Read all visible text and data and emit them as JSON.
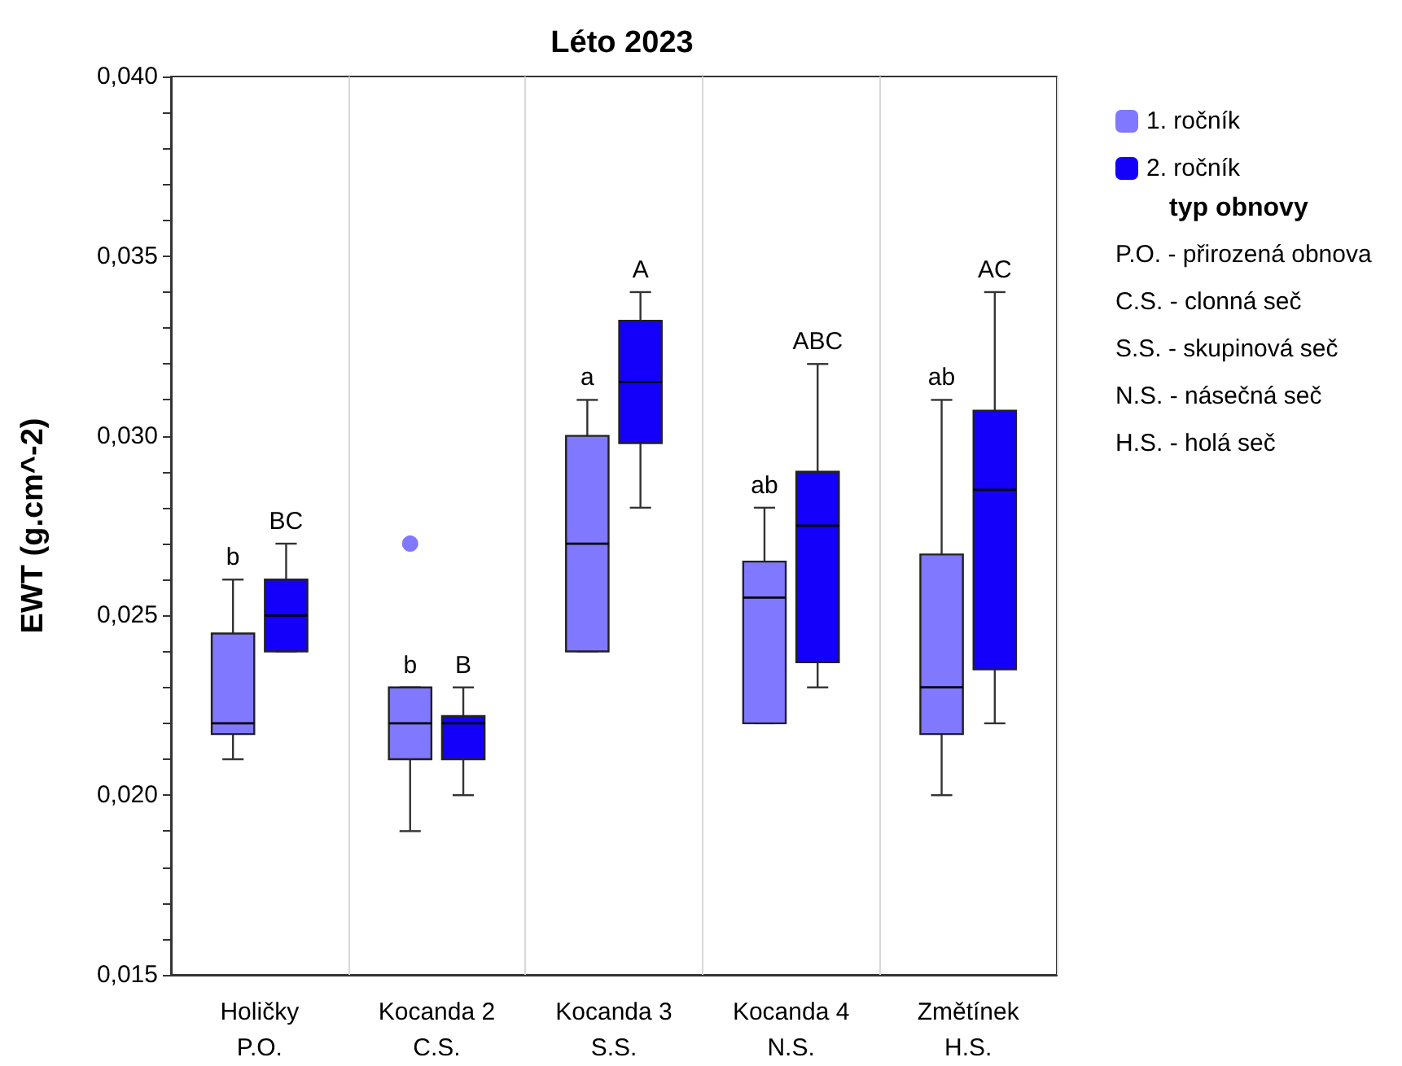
{
  "chart_data": {
    "type": "box",
    "title": "Léto 2023",
    "ylabel": "EWT (g.cm^-2)",
    "categories": [
      "Holičky\nP.O.",
      "Kocanda 2\nC.S.",
      "Kocanda 3\nS.S.",
      "Kocanda 4\nN.S.",
      "Změtínek\nH.S."
    ],
    "series": [
      {
        "name": "1. ročník",
        "color": "#8078ff",
        "value_labels": [
          "b",
          "b",
          "a",
          "ab",
          "ab"
        ],
        "boxes": [
          {
            "low": 0.021,
            "q1": 0.0217,
            "median": 0.022,
            "q3": 0.0245,
            "high": 0.026
          },
          {
            "low": 0.019,
            "q1": 0.021,
            "median": 0.022,
            "q3": 0.023,
            "high": 0.023,
            "outliers": [
              0.027
            ]
          },
          {
            "low": 0.024,
            "q1": 0.024,
            "median": 0.027,
            "q3": 0.03,
            "high": 0.031
          },
          {
            "low": 0.022,
            "q1": 0.022,
            "median": 0.0255,
            "q3": 0.0265,
            "high": 0.028
          },
          {
            "low": 0.02,
            "q1": 0.0217,
            "median": 0.023,
            "q3": 0.0267,
            "high": 0.031
          }
        ]
      },
      {
        "name": "2. ročník",
        "color": "#1400fa",
        "value_labels": [
          "BC",
          "B",
          "A",
          "ABC",
          "AC"
        ],
        "boxes": [
          {
            "low": 0.024,
            "q1": 0.024,
            "median": 0.025,
            "q3": 0.026,
            "high": 0.027
          },
          {
            "low": 0.02,
            "q1": 0.021,
            "median": 0.022,
            "q3": 0.0222,
            "high": 0.023
          },
          {
            "low": 0.028,
            "q1": 0.0298,
            "median": 0.0315,
            "q3": 0.0332,
            "high": 0.034
          },
          {
            "low": 0.023,
            "q1": 0.0237,
            "median": 0.0275,
            "q3": 0.029,
            "high": 0.032
          },
          {
            "low": 0.022,
            "q1": 0.0235,
            "median": 0.0285,
            "q3": 0.0307,
            "high": 0.034
          }
        ]
      }
    ],
    "ylim": [
      0.015,
      0.04
    ],
    "yticks": [
      {
        "value": 0.015,
        "label": "0,015"
      },
      {
        "value": 0.016,
        "label": null
      },
      {
        "value": 0.017,
        "label": null
      },
      {
        "value": 0.018,
        "label": null
      },
      {
        "value": 0.019,
        "label": null
      },
      {
        "value": 0.02,
        "label": "0,020"
      },
      {
        "value": 0.021,
        "label": null
      },
      {
        "value": 0.022,
        "label": null
      },
      {
        "value": 0.023,
        "label": null
      },
      {
        "value": 0.024,
        "label": null
      },
      {
        "value": 0.025,
        "label": "0,025"
      },
      {
        "value": 0.026,
        "label": null
      },
      {
        "value": 0.027,
        "label": null
      },
      {
        "value": 0.028,
        "label": null
      },
      {
        "value": 0.029,
        "label": null
      },
      {
        "value": 0.03,
        "label": "0,030"
      },
      {
        "value": 0.031,
        "label": null
      },
      {
        "value": 0.032,
        "label": null
      },
      {
        "value": 0.033,
        "label": null
      },
      {
        "value": 0.034,
        "label": null
      },
      {
        "value": 0.035,
        "label": "0,035"
      },
      {
        "value": 0.036,
        "label": null
      },
      {
        "value": 0.037,
        "label": null
      },
      {
        "value": 0.038,
        "label": null
      },
      {
        "value": 0.039,
        "label": null
      },
      {
        "value": 0.04,
        "label": "0,040"
      }
    ],
    "grid": "x",
    "legend": "right",
    "annotations": [
      "typ obnovy",
      "P.O. - přirozená obnova",
      "C.S. - clonná seč",
      "S.S. - skupinová seč",
      "N.S. - násečná seč",
      "H.S. - holá seč"
    ]
  }
}
